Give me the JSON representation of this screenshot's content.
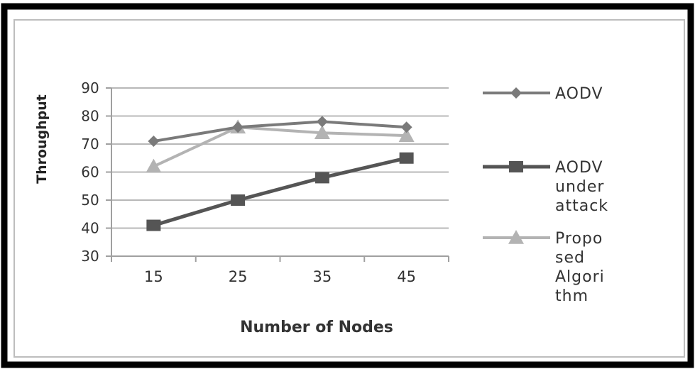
{
  "chart_data": {
    "type": "line",
    "title": "",
    "xlabel": "Number of Nodes",
    "ylabel": "Throughput",
    "categories": [
      "15",
      "25",
      "35",
      "45"
    ],
    "ylim": [
      30,
      90
    ],
    "yticks": [
      30,
      40,
      50,
      60,
      70,
      80,
      90
    ],
    "ytick_labels": [
      "30",
      "40",
      "50",
      "60",
      "70",
      "80",
      "90"
    ],
    "grid": true,
    "legend_position": "right",
    "series": [
      {
        "name": "AODV",
        "values": [
          71,
          76,
          78,
          76
        ],
        "color": "#7a7a7a",
        "marker": "diamond",
        "legend_lines": [
          "AODV"
        ]
      },
      {
        "name": "AODV under attack",
        "values": [
          41,
          50,
          58,
          65
        ],
        "color": "#555555",
        "marker": "square",
        "legend_lines": [
          "AODV",
          "under",
          "attack"
        ]
      },
      {
        "name": "Proposed Algorithm",
        "values": [
          62,
          76,
          74,
          73
        ],
        "color": "#b3b3b3",
        "marker": "triangle",
        "legend_lines": [
          "Propo",
          "sed",
          "Algori",
          "thm"
        ]
      }
    ]
  }
}
